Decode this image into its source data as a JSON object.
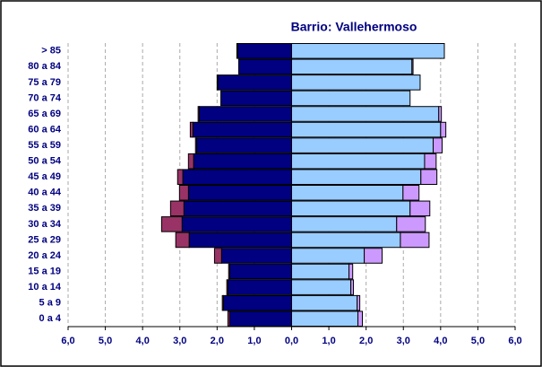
{
  "chart_data": {
    "type": "pyramid",
    "title": "Barrio: Vallehermoso",
    "categories": [
      "> 85",
      "80 a 84",
      "75 a 79",
      "70 a 74",
      "65 a 69",
      "60 a 64",
      "55 a 59",
      "50 a 54",
      "45 a 49",
      "40 a 44",
      "35 a 39",
      "30 a 34",
      "25 a 29",
      "20 a 24",
      "15 a 19",
      "10 a 14",
      "5 a 9",
      "0 a 4"
    ],
    "series": [
      {
        "color": "#000080",
        "side": "left",
        "values": [
          1.45,
          1.42,
          1.98,
          1.9,
          2.48,
          2.65,
          2.55,
          2.63,
          2.92,
          2.77,
          2.89,
          2.94,
          2.75,
          1.88,
          1.66,
          1.71,
          1.83,
          1.66
        ]
      },
      {
        "color": "#993366",
        "side": "left",
        "values": [
          0.02,
          0,
          0.02,
          0,
          0.03,
          0.07,
          0.03,
          0.14,
          0.14,
          0.24,
          0.36,
          0.55,
          0.36,
          0.19,
          0.03,
          0.03,
          0.03,
          0.05
        ]
      },
      {
        "color": "#99ccff",
        "side": "right",
        "values": [
          4.1,
          3.23,
          3.45,
          3.18,
          3.95,
          4.0,
          3.8,
          3.57,
          3.47,
          2.99,
          3.18,
          2.82,
          2.92,
          1.95,
          1.54,
          1.59,
          1.76,
          1.78
        ]
      },
      {
        "color": "#cc99ff",
        "side": "right",
        "values": [
          0,
          0.03,
          0,
          0,
          0.07,
          0.14,
          0.24,
          0.31,
          0.43,
          0.43,
          0.53,
          0.77,
          0.77,
          0.48,
          0.1,
          0.07,
          0.07,
          0.12
        ]
      }
    ],
    "xlim": [
      -6,
      6
    ],
    "xticks": [
      {
        "value": -6,
        "label": "6,0"
      },
      {
        "value": -5,
        "label": "5,0"
      },
      {
        "value": -4,
        "label": "4,0"
      },
      {
        "value": -3,
        "label": "3,0"
      },
      {
        "value": -2,
        "label": "2,0"
      },
      {
        "value": -1,
        "label": "1,0"
      },
      {
        "value": 0,
        "label": "0,0"
      },
      {
        "value": 1,
        "label": "1,0"
      },
      {
        "value": 2,
        "label": "2,0"
      },
      {
        "value": 3,
        "label": "3,0"
      },
      {
        "value": 4,
        "label": "4,0"
      },
      {
        "value": 5,
        "label": "5,0"
      },
      {
        "value": 6,
        "label": "6,0"
      }
    ],
    "grid": true
  }
}
